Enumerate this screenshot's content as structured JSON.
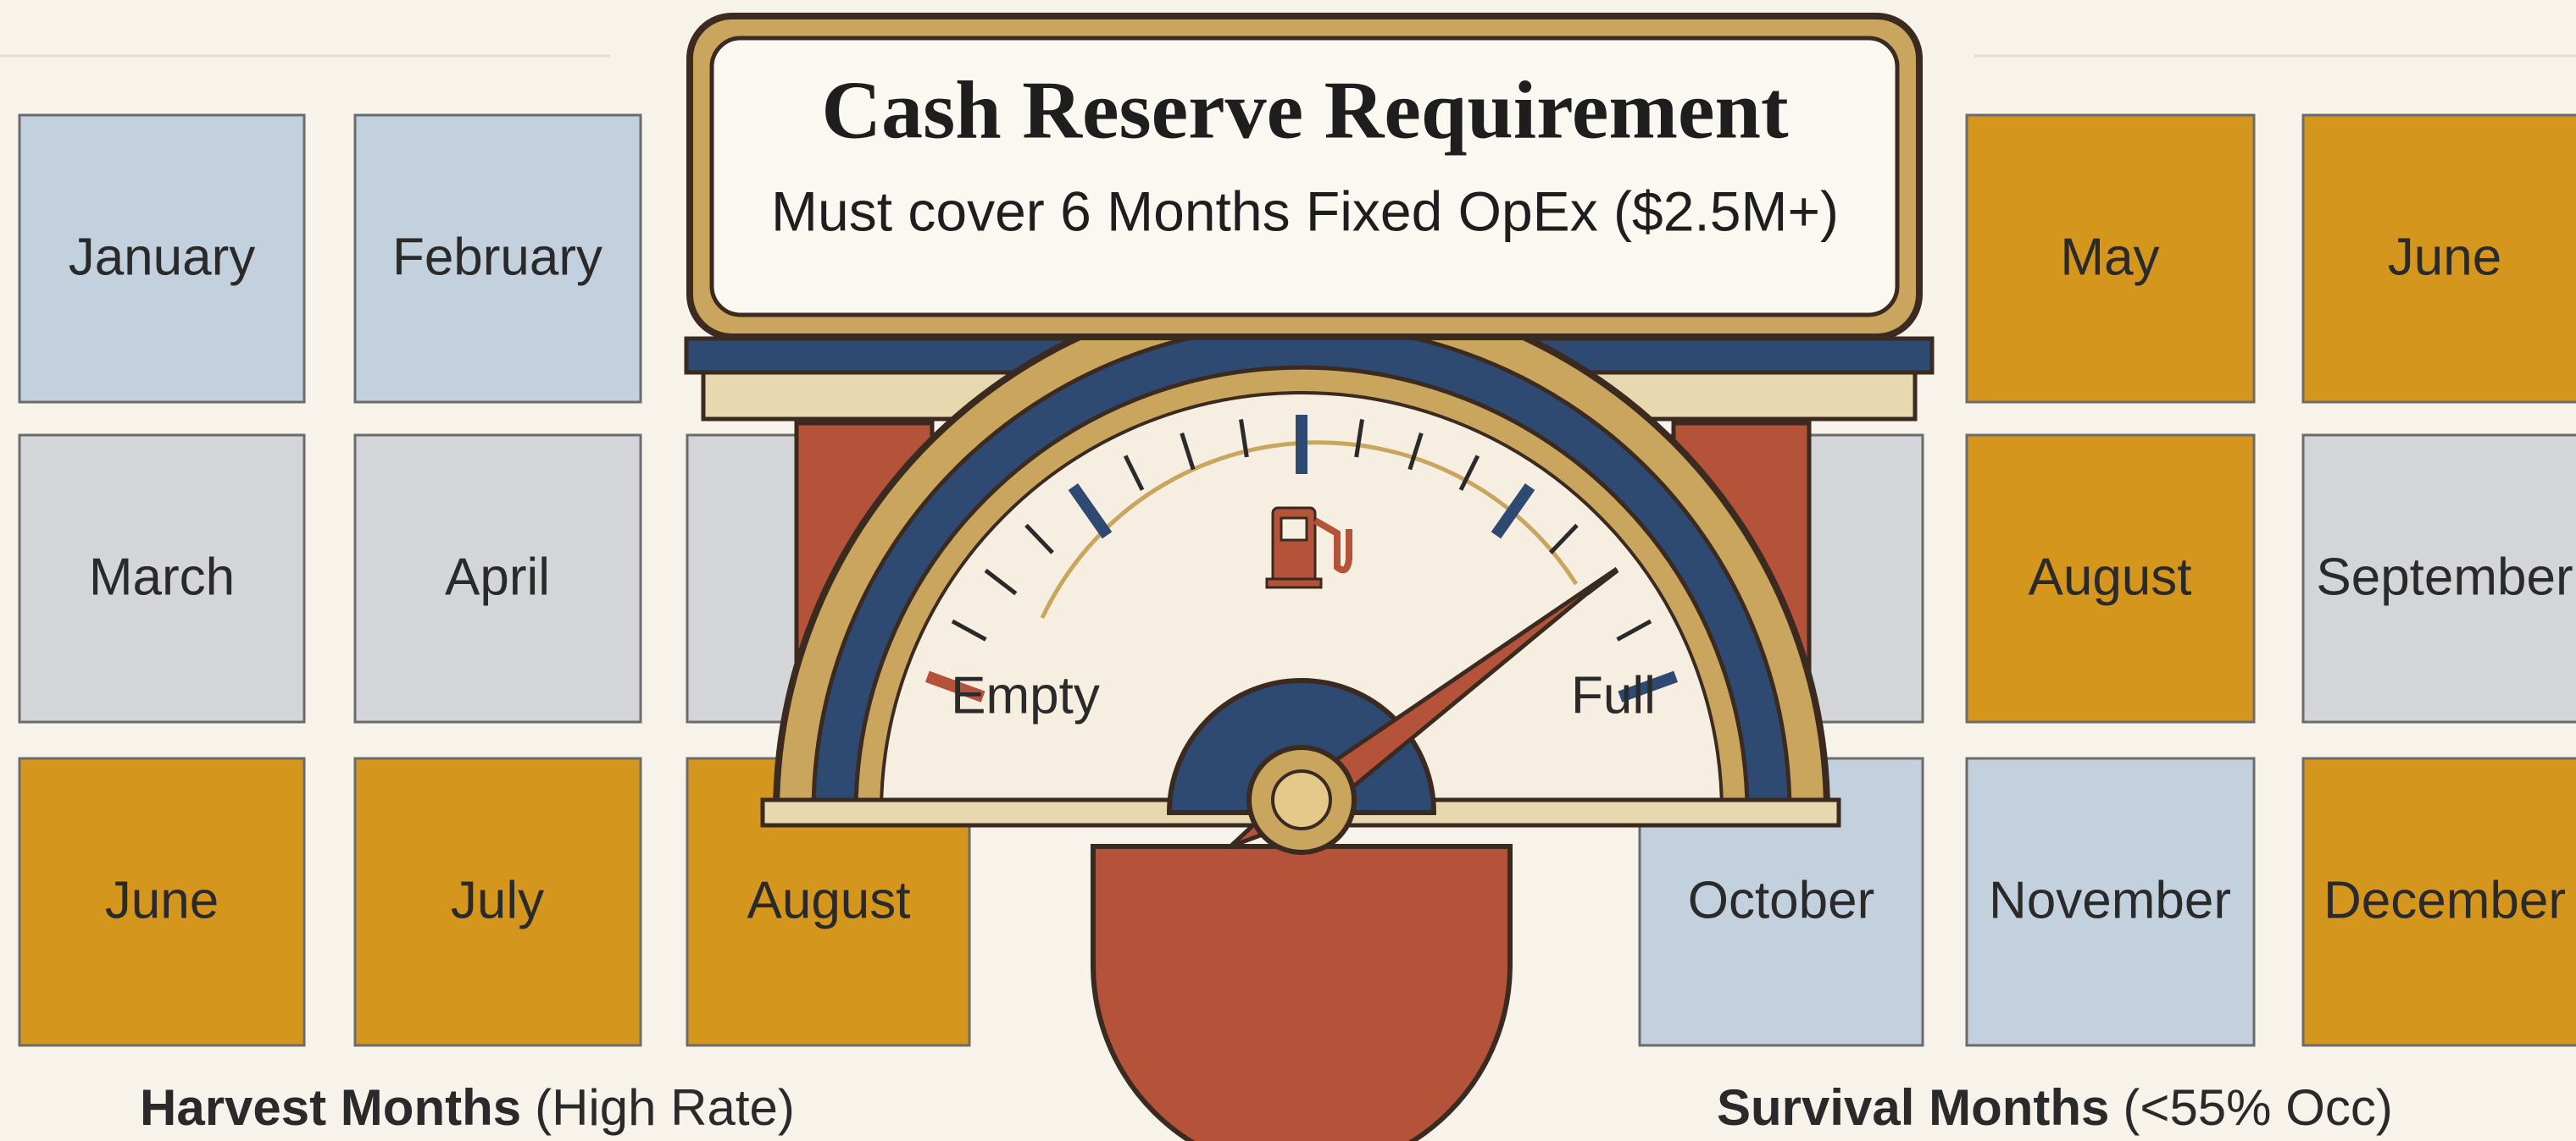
{
  "header": {
    "title": "Cash Reserve Requirement",
    "subtitle": "Must cover 6 Months Fixed OpEx ($2.5M+)"
  },
  "left_grid": {
    "tiles": [
      "January",
      "February",
      "March",
      "April",
      "June",
      "July",
      "August"
    ],
    "caption": {
      "bold": "Harvest Months",
      "rest": "(High Rate)"
    }
  },
  "right_grid": {
    "tiles": [
      "May",
      "June",
      "August",
      "September",
      "October",
      "November",
      "December"
    ],
    "caption": {
      "bold": "Survival Months",
      "rest": "(<55% Occ)"
    }
  },
  "gauge": {
    "empty": "Empty",
    "full": "Full"
  }
}
